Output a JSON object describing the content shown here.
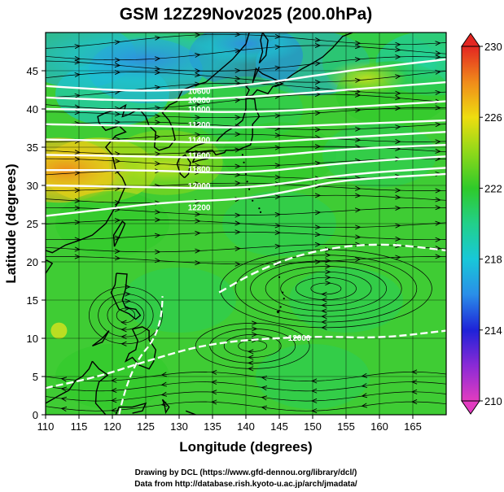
{
  "chart_data": {
    "type": "heatmap",
    "title": "GSM 12Z29Nov2025 (200.0hPa)",
    "xlabel": "Longitude (degrees)",
    "ylabel": "Latitude  (degrees)",
    "xlim": [
      110,
      170
    ],
    "ylim": [
      0,
      50
    ],
    "xticks": [
      110,
      115,
      120,
      125,
      130,
      135,
      140,
      145,
      150,
      155,
      160,
      165
    ],
    "yticks": [
      0,
      5,
      10,
      15,
      20,
      25,
      30,
      35,
      40,
      45
    ],
    "colorbar": {
      "range": [
        210,
        230
      ],
      "ticks": [
        210,
        214,
        218,
        222,
        226,
        230
      ],
      "stops": [
        {
          "value": 210,
          "color": "#e23cc0"
        },
        {
          "value": 212,
          "color": "#8a2ad6"
        },
        {
          "value": 214,
          "color": "#1e22d8"
        },
        {
          "value": 216,
          "color": "#2a8ee8"
        },
        {
          "value": 218,
          "color": "#18c8d8"
        },
        {
          "value": 220,
          "color": "#22d08a"
        },
        {
          "value": 222,
          "color": "#2fca2a"
        },
        {
          "value": 224,
          "color": "#8ed81a"
        },
        {
          "value": 226,
          "color": "#eedd10"
        },
        {
          "value": 228,
          "color": "#f08a1a"
        },
        {
          "value": 230,
          "color": "#e32622"
        }
      ]
    },
    "temperature_samples": [
      {
        "lon": 115,
        "lat": 47,
        "value": 217
      },
      {
        "lon": 125,
        "lat": 45,
        "value": 216
      },
      {
        "lon": 140,
        "lat": 47,
        "value": 215
      },
      {
        "lon": 150,
        "lat": 46,
        "value": 217
      },
      {
        "lon": 160,
        "lat": 46,
        "value": 221
      },
      {
        "lon": 168,
        "lat": 46,
        "value": 219
      },
      {
        "lon": 120,
        "lat": 42,
        "value": 218
      },
      {
        "lon": 140,
        "lat": 40,
        "value": 221
      },
      {
        "lon": 162,
        "lat": 42,
        "value": 222
      },
      {
        "lon": 112,
        "lat": 32,
        "value": 227
      },
      {
        "lon": 118,
        "lat": 32,
        "value": 226
      },
      {
        "lon": 128,
        "lat": 33,
        "value": 224
      },
      {
        "lon": 145,
        "lat": 34,
        "value": 222
      },
      {
        "lon": 160,
        "lat": 34,
        "value": 221
      },
      {
        "lon": 120,
        "lat": 25,
        "value": 222
      },
      {
        "lon": 145,
        "lat": 25,
        "value": 221
      },
      {
        "lon": 130,
        "lat": 15,
        "value": 221
      },
      {
        "lon": 155,
        "lat": 15,
        "value": 221
      },
      {
        "lon": 120,
        "lat": 5,
        "value": 222
      },
      {
        "lon": 150,
        "lat": 5,
        "value": 221
      }
    ],
    "contours": [
      {
        "label": "12000",
        "points": [
          [
            110,
            3.5
          ],
          [
            118,
            5
          ],
          [
            125,
            7
          ],
          [
            135,
            9.5
          ],
          [
            150,
            10.3
          ],
          [
            160,
            10
          ],
          [
            170,
            11
          ]
        ]
      },
      {
        "label": "12200",
        "points": [
          [
            110,
            26
          ],
          [
            120,
            27
          ],
          [
            128,
            27.8
          ],
          [
            140,
            28.2
          ],
          [
            148,
            29.5
          ],
          [
            153,
            30.5
          ],
          [
            160,
            31
          ],
          [
            170,
            31.5
          ]
        ]
      },
      {
        "label": "12000",
        "points": [
          [
            110,
            30
          ],
          [
            125,
            29.8
          ],
          [
            140,
            29.5
          ],
          [
            155,
            31.5
          ],
          [
            170,
            32.3
          ]
        ]
      },
      {
        "label": "11800",
        "points": [
          [
            110,
            32
          ],
          [
            125,
            32
          ],
          [
            140,
            31.5
          ],
          [
            155,
            33
          ],
          [
            170,
            33.8
          ]
        ]
      },
      {
        "label": "11600",
        "points": [
          [
            110,
            34
          ],
          [
            125,
            33.8
          ],
          [
            140,
            33.5
          ],
          [
            155,
            34.8
          ],
          [
            170,
            35.3
          ]
        ]
      },
      {
        "label": "11400",
        "points": [
          [
            110,
            36
          ],
          [
            125,
            35.8
          ],
          [
            140,
            35.5
          ],
          [
            155,
            36.3
          ],
          [
            170,
            37
          ]
        ]
      },
      {
        "label": "11200",
        "points": [
          [
            110,
            38
          ],
          [
            125,
            37.8
          ],
          [
            140,
            37.5
          ],
          [
            155,
            38
          ],
          [
            170,
            38.5
          ]
        ]
      },
      {
        "label": "11000",
        "points": [
          [
            110,
            40
          ],
          [
            125,
            39.8
          ],
          [
            140,
            39.5
          ],
          [
            155,
            40.2
          ],
          [
            170,
            41
          ]
        ]
      },
      {
        "label": "10800",
        "points": [
          [
            110,
            41.5
          ],
          [
            125,
            41
          ],
          [
            140,
            41.5
          ],
          [
            155,
            42.5
          ],
          [
            170,
            43.5
          ]
        ]
      },
      {
        "label": "10600",
        "points": [
          [
            110,
            43
          ],
          [
            125,
            42.2
          ],
          [
            140,
            43
          ],
          [
            155,
            45
          ],
          [
            170,
            46.5
          ]
        ]
      },
      {
        "label": "",
        "points": [
          [
            136,
            16
          ],
          [
            142,
            19
          ],
          [
            150,
            21.5
          ],
          [
            160,
            22.5
          ],
          [
            170,
            21.5
          ]
        ]
      }
    ],
    "credits": [
      "Drawing by DCL (https://www.gfd-dennou.org/library/dcl/)",
      "Data from http://database.rish.kyoto-u.ac.jp/arch/jmadata/"
    ]
  }
}
